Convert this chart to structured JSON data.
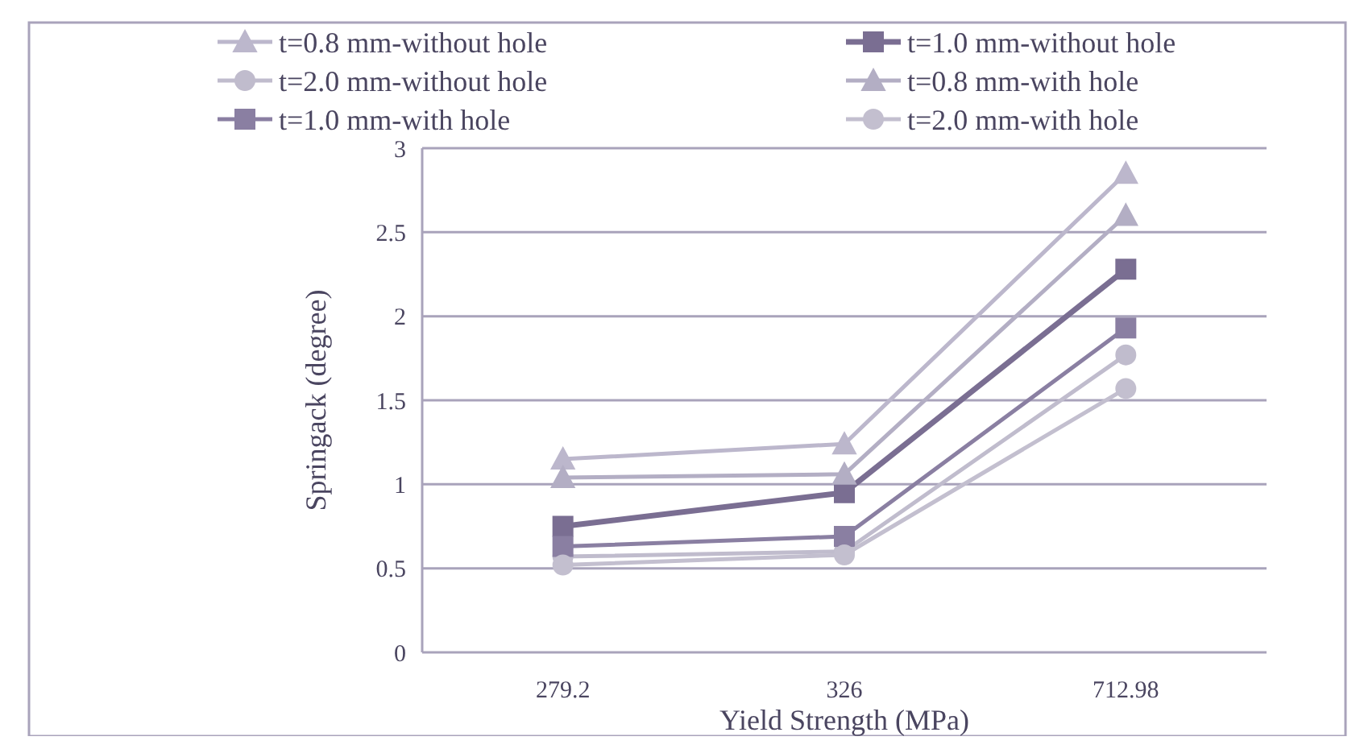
{
  "chart_data": {
    "type": "line",
    "xlabel": "Yield Strength   (MPa)",
    "ylabel": "Springack (degree)",
    "categories": [
      "279.2",
      "326",
      "712.98"
    ],
    "ylim": [
      0,
      3
    ],
    "yticks": [
      0,
      0.5,
      1,
      1.5,
      2,
      2.5,
      3
    ],
    "grid": "y",
    "legend": "top",
    "line_style": "solid",
    "series": [
      {
        "name": "t=0.8 mm-without hole",
        "color": "#bcb7cc",
        "marker": "triangle",
        "values": [
          1.15,
          1.24,
          2.85
        ]
      },
      {
        "name": "t=1.0 mm-without hole",
        "color": "#7a6e92",
        "marker": "square",
        "values": [
          0.75,
          0.95,
          2.28
        ]
      },
      {
        "name": "t=2.0 mm-without hole",
        "color": "#c0bccd",
        "marker": "circle",
        "values": [
          0.57,
          0.6,
          1.77
        ]
      },
      {
        "name": "t=0.8 mm-with hole",
        "color": "#b3aec4",
        "marker": "triangle",
        "values": [
          1.04,
          1.06,
          2.6
        ]
      },
      {
        "name": "t=1.0 mm-with hole",
        "color": "#8a7fa2",
        "marker": "square",
        "values": [
          0.63,
          0.69,
          1.93
        ]
      },
      {
        "name": "t=2.0 mm-with hole",
        "color": "#c3bfcf",
        "marker": "circle",
        "values": [
          0.52,
          0.58,
          1.57
        ]
      }
    ]
  }
}
